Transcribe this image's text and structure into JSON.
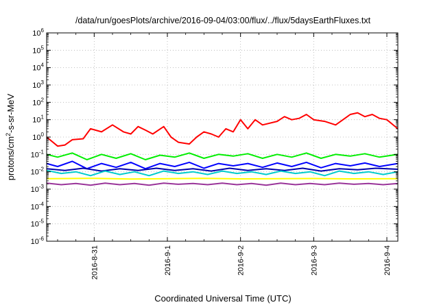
{
  "chart_data": {
    "type": "line",
    "title": "/data/run/goesPlots/archive/2016-09-04/03:00/flux/../flux/5daysEarthFluxes.txt",
    "xlabel": "Coordinated Universal Time (UTC)",
    "ylabel_base": "protons/cm",
    "ylabel_exp": "2",
    "ylabel_rest": "-s-sr-MeV",
    "yscale": "log",
    "ylim_exp": [
      -6,
      6
    ],
    "y_ticks": [
      {
        "base": "10",
        "exp": "6",
        "e": 6
      },
      {
        "base": "10",
        "exp": "5",
        "e": 5
      },
      {
        "base": "10",
        "exp": "4",
        "e": 4
      },
      {
        "base": "10",
        "exp": "3",
        "e": 3
      },
      {
        "base": "10",
        "exp": "2",
        "e": 2
      },
      {
        "base": "10",
        "exp": "1",
        "e": 1
      },
      {
        "base": "10",
        "exp": "0",
        "e": 0
      },
      {
        "base": "10",
        "exp": "-1",
        "e": -1
      },
      {
        "base": "10",
        "exp": "-2",
        "e": -2
      },
      {
        "base": "10",
        "exp": "-3",
        "e": -3
      },
      {
        "base": "10",
        "exp": "-4",
        "e": -4
      },
      {
        "base": "10",
        "exp": "-5",
        "e": -5
      },
      {
        "base": "10",
        "exp": "-6",
        "e": -6
      }
    ],
    "xlim_days": [
      -1.65,
      3.15
    ],
    "x_ticks": [
      {
        "label": "2016-8-31",
        "day": -1
      },
      {
        "label": "2016-9-1",
        "day": 0
      },
      {
        "label": "2016-9-2",
        "day": 1
      },
      {
        "label": "2016-9-3",
        "day": 2
      },
      {
        "label": "2016-9-4",
        "day": 3
      }
    ],
    "grid": true,
    "series": [
      {
        "color": "#ff0000",
        "x": [
          -1.65,
          -1.5,
          -1.4,
          -1.3,
          -1.15,
          -1.05,
          -0.9,
          -0.75,
          -0.6,
          -0.5,
          -0.4,
          -0.3,
          -0.2,
          -0.05,
          0.05,
          0.15,
          0.3,
          0.4,
          0.5,
          0.6,
          0.7,
          0.8,
          0.9,
          1.0,
          1.1,
          1.2,
          1.3,
          1.5,
          1.6,
          1.7,
          1.8,
          1.9,
          2.0,
          2.15,
          2.3,
          2.4,
          2.5,
          2.6,
          2.7,
          2.8,
          2.9,
          3.0,
          3.15
        ],
        "y": [
          1.0,
          0.3,
          0.35,
          0.7,
          0.8,
          3.0,
          2.0,
          5.0,
          2.0,
          1.5,
          4.0,
          2.5,
          1.5,
          4.0,
          1.0,
          0.5,
          0.4,
          1.0,
          2.0,
          1.5,
          1.0,
          3.0,
          2.0,
          10.0,
          3.0,
          10.0,
          5.0,
          8.0,
          15.0,
          10.0,
          12.0,
          20.0,
          10.0,
          8.0,
          5.0,
          10.0,
          20.0,
          25.0,
          15.0,
          20.0,
          12.0,
          10.0,
          3.0
        ]
      },
      {
        "color": "#00ee00",
        "x": [
          -1.65,
          -1.5,
          -1.3,
          -1.1,
          -0.9,
          -0.7,
          -0.5,
          -0.3,
          -0.1,
          0.1,
          0.3,
          0.5,
          0.7,
          0.9,
          1.1,
          1.3,
          1.5,
          1.7,
          1.9,
          2.1,
          2.3,
          2.5,
          2.7,
          2.9,
          3.15
        ],
        "y": [
          0.1,
          0.07,
          0.12,
          0.05,
          0.1,
          0.06,
          0.11,
          0.05,
          0.09,
          0.07,
          0.12,
          0.06,
          0.1,
          0.08,
          0.11,
          0.06,
          0.1,
          0.07,
          0.12,
          0.06,
          0.1,
          0.08,
          0.11,
          0.07,
          0.1
        ]
      },
      {
        "color": "#0000ff",
        "x": [
          -1.65,
          -1.5,
          -1.3,
          -1.1,
          -0.9,
          -0.7,
          -0.5,
          -0.3,
          -0.1,
          0.1,
          0.3,
          0.5,
          0.7,
          0.9,
          1.1,
          1.3,
          1.5,
          1.7,
          1.9,
          2.1,
          2.3,
          2.5,
          2.7,
          2.9,
          3.15
        ],
        "y": [
          0.03,
          0.02,
          0.04,
          0.015,
          0.03,
          0.018,
          0.035,
          0.015,
          0.03,
          0.02,
          0.035,
          0.016,
          0.03,
          0.022,
          0.03,
          0.018,
          0.032,
          0.02,
          0.035,
          0.017,
          0.03,
          0.022,
          0.032,
          0.02,
          0.03
        ]
      },
      {
        "color": "#0000aa",
        "x": [
          -1.65,
          -1.4,
          -1.15,
          -0.9,
          -0.65,
          -0.4,
          -0.15,
          0.1,
          0.35,
          0.6,
          0.85,
          1.1,
          1.35,
          1.6,
          1.85,
          2.1,
          2.35,
          2.6,
          2.85,
          3.15
        ],
        "y": [
          0.015,
          0.012,
          0.016,
          0.011,
          0.015,
          0.012,
          0.016,
          0.012,
          0.015,
          0.011,
          0.016,
          0.012,
          0.015,
          0.012,
          0.016,
          0.011,
          0.015,
          0.013,
          0.016,
          0.014
        ]
      },
      {
        "color": "#00cccc",
        "x": [
          -1.65,
          -1.45,
          -1.25,
          -1.05,
          -0.85,
          -0.65,
          -0.45,
          -0.25,
          -0.05,
          0.15,
          0.35,
          0.55,
          0.75,
          0.95,
          1.15,
          1.35,
          1.55,
          1.75,
          1.95,
          2.15,
          2.35,
          2.55,
          2.75,
          2.95,
          3.15
        ],
        "y": [
          0.012,
          0.008,
          0.01,
          0.006,
          0.011,
          0.007,
          0.01,
          0.006,
          0.011,
          0.008,
          0.01,
          0.007,
          0.011,
          0.008,
          0.01,
          0.007,
          0.011,
          0.008,
          0.01,
          0.006,
          0.011,
          0.008,
          0.01,
          0.007,
          0.01
        ]
      },
      {
        "color": "#ffff00",
        "x": [
          -1.65,
          -1.0,
          -0.5,
          0.0,
          0.5,
          1.0,
          1.5,
          2.0,
          2.5,
          3.15
        ],
        "y": [
          0.004,
          0.0042,
          0.0038,
          0.004,
          0.0042,
          0.0039,
          0.004,
          0.0041,
          0.0039,
          0.004
        ]
      },
      {
        "color": "#993399",
        "x": [
          -1.65,
          -1.45,
          -1.25,
          -1.05,
          -0.85,
          -0.65,
          -0.45,
          -0.25,
          -0.05,
          0.15,
          0.35,
          0.55,
          0.75,
          0.95,
          1.15,
          1.35,
          1.55,
          1.75,
          1.95,
          2.15,
          2.35,
          2.55,
          2.75,
          2.95,
          3.15
        ],
        "y": [
          0.0022,
          0.0018,
          0.0021,
          0.0017,
          0.0022,
          0.0018,
          0.0021,
          0.0017,
          0.0022,
          0.0019,
          0.0021,
          0.0018,
          0.0022,
          0.0018,
          0.0021,
          0.0017,
          0.0022,
          0.0018,
          0.0021,
          0.0018,
          0.0022,
          0.0019,
          0.0021,
          0.0018,
          0.0021
        ]
      }
    ]
  }
}
